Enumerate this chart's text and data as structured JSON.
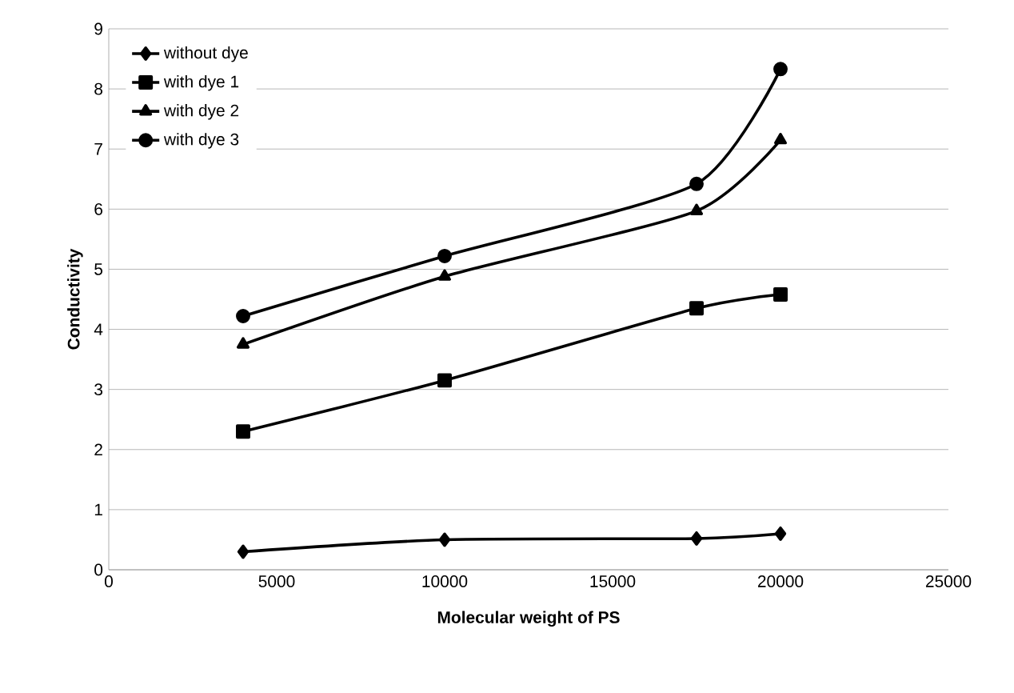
{
  "chart_data": {
    "type": "line",
    "xlabel": "Molecular weight of PS",
    "ylabel": "Conductivity",
    "x": [
      4000,
      10000,
      17500,
      20000
    ],
    "series": [
      {
        "name": "without dye",
        "color": "#000000",
        "marker": "diamond",
        "values": [
          0.3,
          0.5,
          0.52,
          0.6
        ]
      },
      {
        "name": "with dye 1",
        "color": "#000000",
        "marker": "square",
        "values": [
          2.3,
          3.15,
          4.35,
          4.58
        ]
      },
      {
        "name": "with dye 2",
        "color": "#000000",
        "marker": "triangle",
        "values": [
          3.75,
          4.88,
          5.97,
          7.15
        ]
      },
      {
        "name": "with dye 3",
        "color": "#000000",
        "marker": "circle",
        "values": [
          4.22,
          5.22,
          6.42,
          8.33
        ]
      }
    ],
    "xlim": [
      0,
      25000
    ],
    "xticks": [
      0,
      5000,
      10000,
      15000,
      20000,
      25000
    ],
    "ylim": [
      0,
      9
    ],
    "yticks": [
      0,
      1,
      2,
      3,
      4,
      5,
      6,
      7,
      8,
      9
    ],
    "grid": "y",
    "legend": "top left",
    "line_style": "solid"
  }
}
